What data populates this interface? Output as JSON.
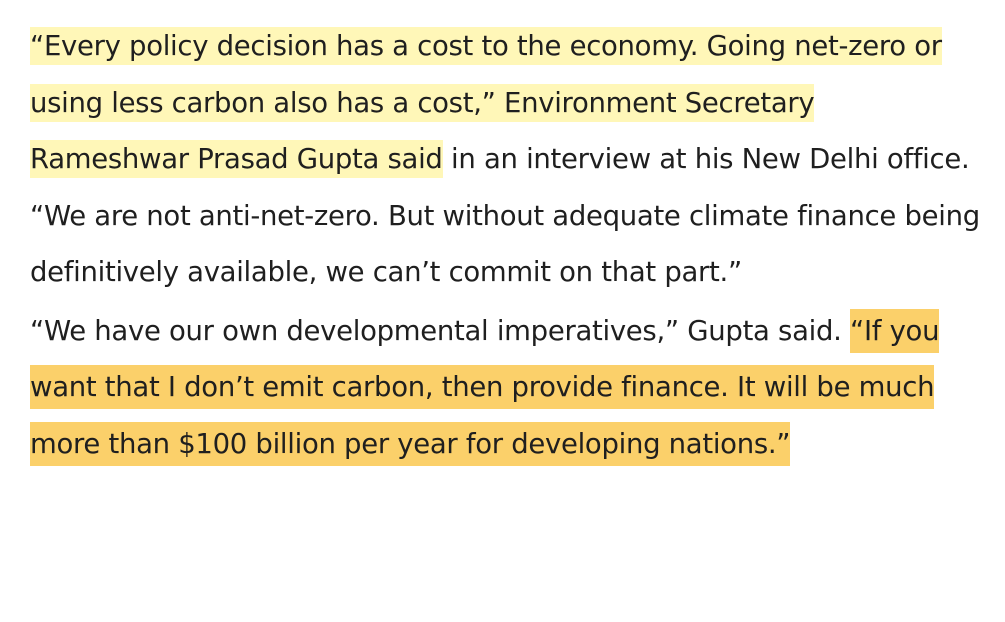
{
  "highlight_colors": {
    "light": "#fff7b8",
    "dark": "#fbd06a"
  },
  "paragraphs": [
    {
      "highlighted": "“Every policy decision has a cost to the economy. Going net-zero or using less carbon also has a cost,” Environment Secretary Rameshwar Prasad Gupta said",
      "plain": " in an interview at his New Delhi office. “We are not anti-net-zero. But without adequate climate finance being definitively available, we can’t commit on that part.”"
    },
    {
      "plain": "“We have our own developmental imperatives,” Gupta said. ",
      "highlighted": "“If you want that I don’t emit carbon, then provide finance. It will be much more than $100 billion per year for developing nations.”"
    }
  ]
}
